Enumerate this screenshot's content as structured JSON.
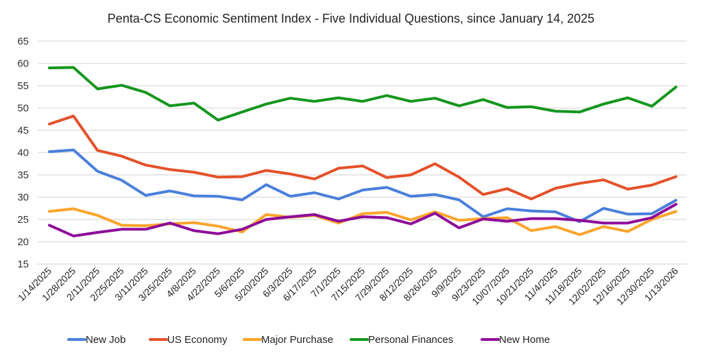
{
  "chart_data": {
    "type": "line",
    "title": "Penta-CS Economic Sentiment Index - Five Individual Questions, since January 14, 2025",
    "xlabel": "",
    "ylabel": "",
    "ylim": [
      15,
      65
    ],
    "yticks": [
      15,
      20,
      25,
      30,
      35,
      40,
      45,
      50,
      55,
      60,
      65
    ],
    "grid": true,
    "legend_position": "bottom",
    "categories": [
      "1/14/2025",
      "1/28/2025",
      "2/11/2025",
      "2/25/2025",
      "3/11/2025",
      "3/25/2025",
      "4/8/2025",
      "4/22/2025",
      "5/6/2025",
      "5/20/2025",
      "6/3/2025",
      "6/17/2025",
      "7/1/2025",
      "7/15/2025",
      "7/29/2025",
      "8/12/2025",
      "8/26/2025",
      "9/9/2025",
      "9/23/2025",
      "10/07/2025",
      "10/21/2025",
      "11/4/2025",
      "11/18/2025",
      "12/02/2025",
      "12/16/2025",
      "12/30/2025",
      "1/13/2026"
    ],
    "series": [
      {
        "name": "New Job",
        "color": "#4a7fdc",
        "values": [
          40.2,
          40.6,
          35.8,
          33.8,
          30.4,
          31.4,
          30.3,
          30.2,
          29.4,
          32.8,
          30.2,
          31.0,
          29.6,
          31.6,
          32.2,
          30.2,
          30.6,
          29.4,
          25.6,
          27.4,
          26.9,
          26.7,
          24.5,
          27.5,
          26.2,
          26.3,
          29.3
        ]
      },
      {
        "name": "US Economy",
        "color": "#e4512a",
        "values": [
          46.4,
          48.2,
          40.5,
          39.2,
          37.2,
          36.2,
          35.6,
          34.5,
          34.6,
          36.0,
          35.2,
          34.1,
          36.5,
          37.0,
          34.4,
          35.0,
          37.5,
          34.5,
          30.6,
          31.9,
          29.6,
          32.0,
          33.1,
          33.9,
          31.8,
          32.7,
          34.6
        ]
      },
      {
        "name": "Major Purchase",
        "color": "#fba42b",
        "values": [
          26.8,
          27.4,
          25.9,
          23.7,
          23.6,
          24.0,
          24.3,
          23.5,
          22.2,
          26.1,
          25.5,
          25.9,
          24.2,
          26.3,
          26.6,
          24.9,
          26.7,
          24.8,
          25.2,
          25.4,
          22.5,
          23.4,
          21.6,
          23.4,
          22.3,
          25.0,
          26.8
        ]
      },
      {
        "name": "Personal Finances",
        "color": "#14961e",
        "values": [
          59.0,
          59.1,
          54.3,
          55.1,
          53.5,
          50.5,
          51.1,
          47.3,
          49.1,
          50.9,
          52.2,
          51.5,
          52.3,
          51.5,
          52.8,
          51.5,
          52.2,
          50.5,
          51.9,
          50.1,
          50.3,
          49.3,
          49.1,
          50.9,
          52.3,
          50.4,
          54.7
        ]
      },
      {
        "name": "New Home",
        "color": "#8e0b9a",
        "values": [
          23.7,
          21.3,
          22.1,
          22.8,
          22.8,
          24.2,
          22.5,
          21.8,
          22.8,
          25.0,
          25.6,
          26.1,
          24.6,
          25.6,
          25.4,
          24.0,
          26.4,
          23.1,
          25.1,
          24.6,
          25.2,
          25.2,
          24.8,
          24.2,
          24.2,
          25.4,
          28.4
        ]
      }
    ]
  }
}
